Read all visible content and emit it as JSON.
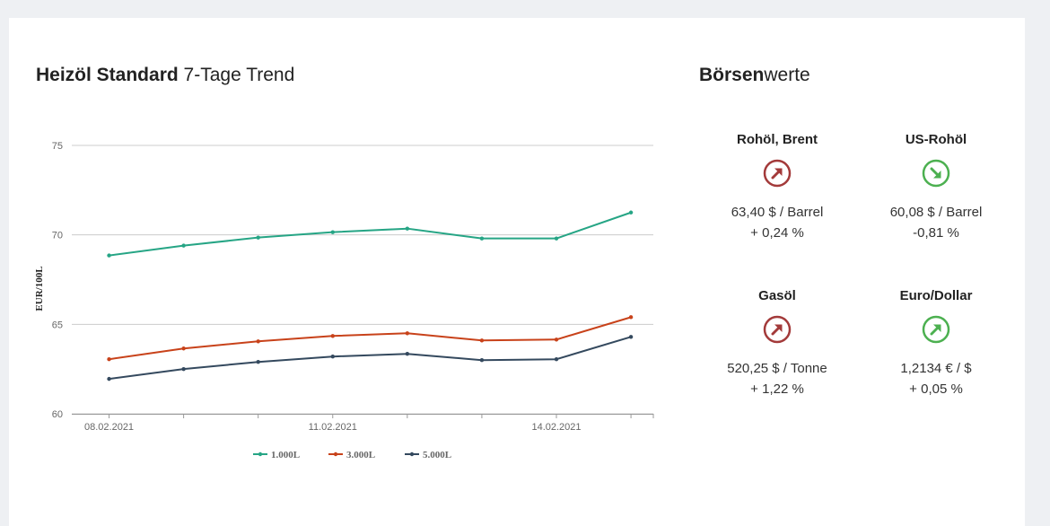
{
  "title": {
    "bold": "Heizöl Standard",
    "rest": " 7-Tage Trend"
  },
  "boerse": {
    "title_bold": "Börsen",
    "title_rest": "werte",
    "items": [
      {
        "name": "Rohöl, Brent",
        "value": "63,40 $ / Barrel",
        "change": "+ 0,24 %",
        "direction": "up",
        "icon": "arrow-up-right-icon",
        "color": "#a33a3a"
      },
      {
        "name": "US-Rohöl",
        "value": "60,08 $ / Barrel",
        "change": "-0,81 %",
        "direction": "down",
        "icon": "arrow-down-right-icon",
        "color": "#4cb050"
      },
      {
        "name": "Gasöl",
        "value": "520,25 $ / Tonne",
        "change": "+ 1,22 %",
        "direction": "up",
        "icon": "arrow-up-right-icon",
        "color": "#a33a3a"
      },
      {
        "name": "Euro/Dollar",
        "value": "1,2134 € / $",
        "change": "+ 0,05 %",
        "direction": "up",
        "icon": "arrow-up-right-icon",
        "color": "#4cb050"
      }
    ]
  },
  "chart_data": {
    "type": "line",
    "ylabel": "EUR/100L",
    "ylim": [
      60,
      75
    ],
    "yticks": [
      "60",
      "65",
      "70",
      "75"
    ],
    "xlim": [
      -0.5,
      7.3
    ],
    "x": [
      0,
      1,
      2,
      3,
      4,
      5,
      6,
      7
    ],
    "xtick_labels": [
      {
        "x": 0,
        "label": "08.02.2021"
      },
      {
        "x": 3,
        "label": "11.02.2021"
      },
      {
        "x": 6,
        "label": "14.02.2021"
      }
    ],
    "series": [
      {
        "name": "1.000L",
        "color": "#26a585",
        "values": [
          68.85,
          69.4,
          69.85,
          70.15,
          70.35,
          69.8,
          69.8,
          71.25
        ]
      },
      {
        "name": "3.000L",
        "color": "#c8421a",
        "values": [
          63.05,
          63.65,
          64.05,
          64.35,
          64.5,
          64.1,
          64.15,
          65.4
        ]
      },
      {
        "name": "5.000L",
        "color": "#34495e",
        "values": [
          61.95,
          62.5,
          62.9,
          63.2,
          63.35,
          63.0,
          63.05,
          64.3
        ]
      }
    ]
  }
}
